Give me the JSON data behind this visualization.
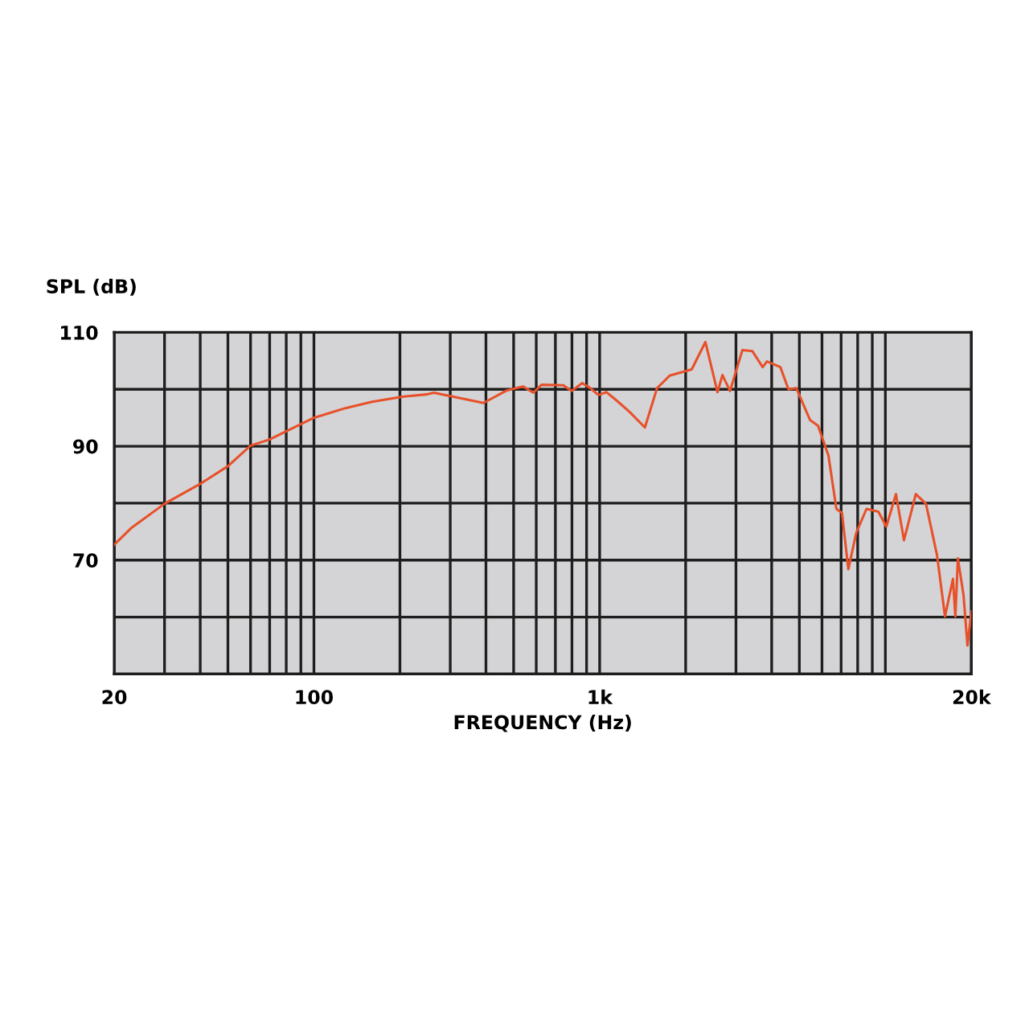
{
  "chart_data": {
    "type": "line",
    "xlabel": "FREQUENCY (Hz)",
    "ylabel": "SPL (dB)",
    "log": "x",
    "grid": true,
    "marker": "none",
    "line_style": "solid",
    "xlim": [
      20,
      20000
    ],
    "ylim": [
      50,
      110
    ],
    "xticks": [
      {
        "value": 20,
        "label": "20"
      },
      {
        "value": 30,
        "label": null
      },
      {
        "value": 40,
        "label": null
      },
      {
        "value": 50,
        "label": null
      },
      {
        "value": 60,
        "label": null
      },
      {
        "value": 70,
        "label": null
      },
      {
        "value": 80,
        "label": null
      },
      {
        "value": 90,
        "label": null
      },
      {
        "value": 100,
        "label": "100"
      },
      {
        "value": 200,
        "label": null
      },
      {
        "value": 300,
        "label": null
      },
      {
        "value": 400,
        "label": null
      },
      {
        "value": 500,
        "label": null
      },
      {
        "value": 600,
        "label": null
      },
      {
        "value": 700,
        "label": null
      },
      {
        "value": 800,
        "label": null
      },
      {
        "value": 900,
        "label": null
      },
      {
        "value": 1000,
        "label": "1k"
      },
      {
        "value": 2000,
        "label": null
      },
      {
        "value": 3000,
        "label": null
      },
      {
        "value": 4000,
        "label": null
      },
      {
        "value": 5000,
        "label": null
      },
      {
        "value": 6000,
        "label": null
      },
      {
        "value": 7000,
        "label": null
      },
      {
        "value": 8000,
        "label": null
      },
      {
        "value": 9000,
        "label": null
      },
      {
        "value": 10000,
        "label": null
      },
      {
        "value": 20000,
        "label": "20k"
      }
    ],
    "yticks": [
      {
        "value": 50,
        "label": null
      },
      {
        "value": 60,
        "label": null
      },
      70,
      {
        "value": 80,
        "label": null
      },
      90,
      {
        "value": 100,
        "label": null
      },
      110
    ],
    "series": [
      {
        "color": "#e8502a",
        "x": [
          20,
          22.9,
          30,
          40,
          50,
          60,
          70,
          82,
          100,
          129,
          160,
          204,
          247,
          263,
          392,
          473,
          540,
          586,
          626,
          747,
          798,
          869,
          928,
          990,
          1057,
          1173,
          1275,
          1440,
          1588,
          1758,
          2100,
          2345,
          2585,
          2690,
          2860,
          3160,
          3425,
          3720,
          3850,
          4290,
          4580,
          4880,
          5450,
          5810,
          6320,
          6740,
          7050,
          7420,
          7910,
          8590,
          9450,
          10080,
          10890,
          11620,
          12780,
          13870,
          15160,
          16170,
          17240,
          17580,
          17940,
          18770,
          19380,
          20000
        ],
        "values": [
          72.7,
          75.6,
          79.9,
          83.4,
          86.5,
          90.1,
          91.2,
          92.9,
          95.0,
          96.7,
          97.8,
          98.7,
          99.1,
          99.4,
          97.6,
          99.8,
          100.5,
          99.4,
          100.8,
          100.7,
          99.7,
          101.1,
          100.2,
          99.0,
          99.5,
          97.6,
          96.0,
          93.3,
          100.2,
          102.4,
          103.5,
          108.3,
          99.5,
          102.5,
          99.7,
          106.9,
          106.7,
          103.9,
          104.9,
          103.9,
          100.0,
          100.2,
          94.6,
          93.6,
          88.4,
          79.0,
          78.3,
          68.4,
          74.8,
          79.0,
          78.5,
          75.9,
          81.6,
          73.5,
          81.6,
          79.9,
          70.9,
          60.1,
          66.7,
          60.1,
          70.3,
          63.9,
          55.0,
          61.0
        ]
      }
    ]
  }
}
